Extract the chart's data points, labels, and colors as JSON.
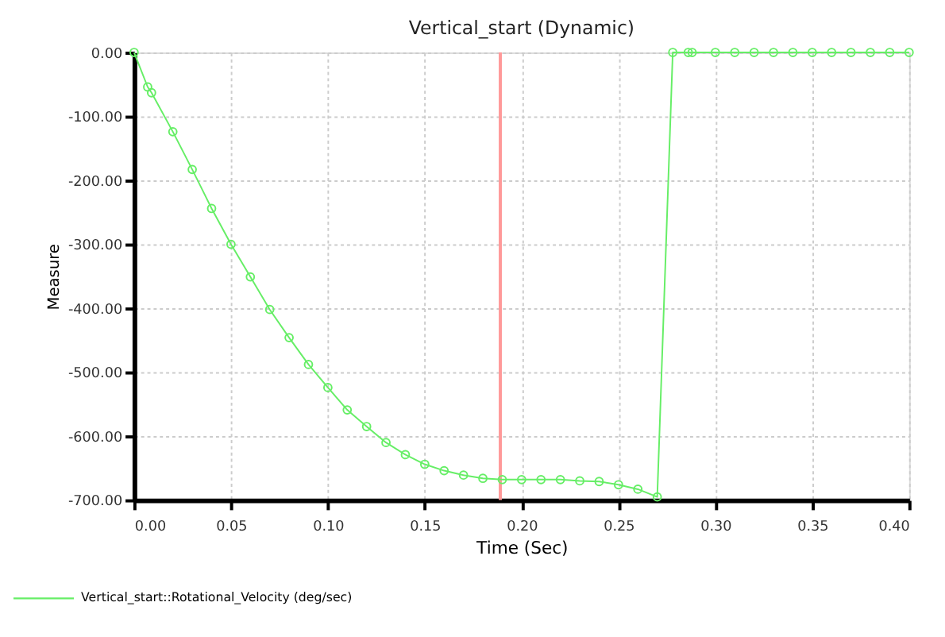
{
  "chart_data": {
    "type": "line",
    "title": "Vertical_start (Dynamic)",
    "xlabel": "Time (Sec)",
    "ylabel": "Measure",
    "series": [
      {
        "name": "Vertical_start::Rotational_Velocity (deg/sec)",
        "color": "#66ee66",
        "x": [
          0,
          0.007,
          0.009,
          0.02,
          0.03,
          0.04,
          0.05,
          0.06,
          0.07,
          0.08,
          0.09,
          0.1,
          0.11,
          0.12,
          0.13,
          0.14,
          0.15,
          0.16,
          0.17,
          0.18,
          0.19,
          0.2,
          0.21,
          0.22,
          0.23,
          0.24,
          0.25,
          0.26,
          0.27,
          0.278,
          0.286,
          0.288,
          0.3,
          0.31,
          0.32,
          0.33,
          0.34,
          0.35,
          0.36,
          0.37,
          0.38,
          0.39,
          0.4
        ],
        "values": [
          0,
          -54,
          -63,
          -124,
          -183,
          -244,
          -300,
          -351,
          -402,
          -446,
          -488,
          -524,
          -559,
          -585,
          -610,
          -629,
          -644,
          -654,
          -661,
          -666,
          -668,
          -668,
          -668,
          -668,
          -670,
          -671,
          -676,
          -683,
          -695,
          0,
          0,
          0,
          0,
          0,
          0,
          0,
          0,
          0,
          0,
          0,
          0,
          0,
          0
        ]
      }
    ],
    "xlim": [
      0,
      0.4
    ],
    "ylim": [
      -700,
      0
    ],
    "xticks": [
      {
        "value": 0,
        "label": "0.00"
      },
      0.05,
      {
        "value": 0.1,
        "label": "0.10"
      },
      0.15,
      {
        "value": 0.2,
        "label": "0.20"
      },
      0.25,
      {
        "value": 0.3,
        "label": "0.30"
      },
      0.35,
      {
        "value": 0.4,
        "label": "0.40"
      }
    ],
    "yticks": [
      {
        "value": -700,
        "label": "-700.00"
      },
      {
        "value": -600,
        "label": "-600.00"
      },
      {
        "value": -500,
        "label": "-500.00"
      },
      {
        "value": -400,
        "label": "-400.00"
      },
      {
        "value": -300,
        "label": "-300.00"
      },
      {
        "value": -200,
        "label": "-200.00"
      },
      {
        "value": -100,
        "label": "-100.00"
      },
      {
        "value": 0,
        "label": "0.00"
      }
    ],
    "ref_lines": [
      {
        "axis": "x",
        "value": 0.189,
        "color": "#ff9999"
      }
    ],
    "grid": true,
    "legend": "bottom left",
    "marker": "circle",
    "line_style": "solid"
  }
}
